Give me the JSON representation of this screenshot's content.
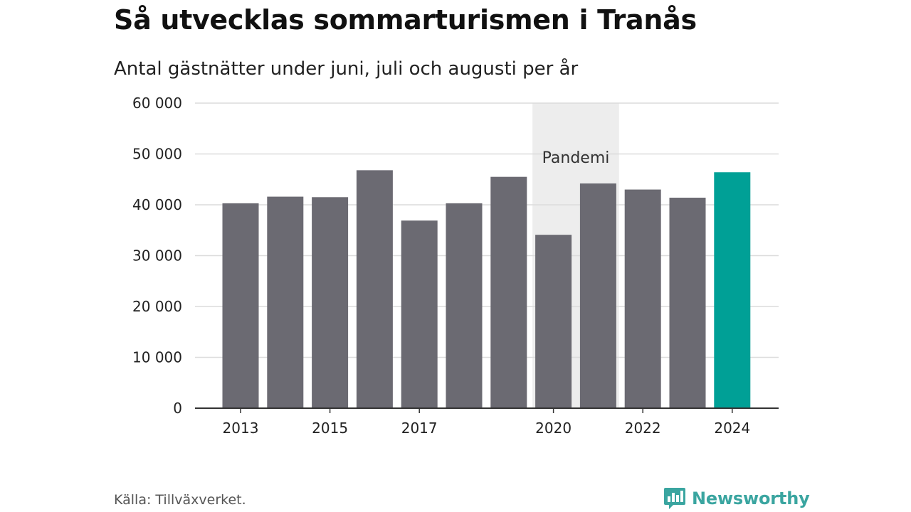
{
  "title": "Så utvecklas sommarturismen i Tranås",
  "subtitle": "Antal gästnätter under juni, juli och augusti per år",
  "source": "Källa: Tillväxverket.",
  "brand": {
    "name": "Newsworthy",
    "icon": "newsworthy-logo-icon",
    "color": "#3aa5a0"
  },
  "colors": {
    "bar": "#6b6a72",
    "highlight": "#00a096",
    "shade": "#ededed",
    "grid": "#dcdcdc",
    "axis": "#333333"
  },
  "chart_data": {
    "type": "bar",
    "categories": [
      "2013",
      "2014",
      "2015",
      "2016",
      "2017",
      "2018",
      "2019",
      "2020",
      "2021",
      "2022",
      "2023",
      "2024"
    ],
    "tick_labels": [
      "2013",
      "",
      "2015",
      "",
      "2017",
      "",
      "",
      "2020",
      "",
      "2022",
      "",
      "2024"
    ],
    "values": [
      40300,
      41600,
      41500,
      46800,
      36900,
      40300,
      45500,
      34100,
      44200,
      43000,
      41400,
      46400
    ],
    "highlight_index": 11,
    "ylim": [
      0,
      60000
    ],
    "yticks": [
      0,
      10000,
      20000,
      30000,
      40000,
      50000,
      60000
    ],
    "ytick_labels": [
      "0",
      "10 000",
      "20 000",
      "30 000",
      "40 000",
      "50 000",
      "60 000"
    ],
    "grid": true,
    "annotation": {
      "label": "Pandemi",
      "from": "2020",
      "to": "2021"
    }
  }
}
